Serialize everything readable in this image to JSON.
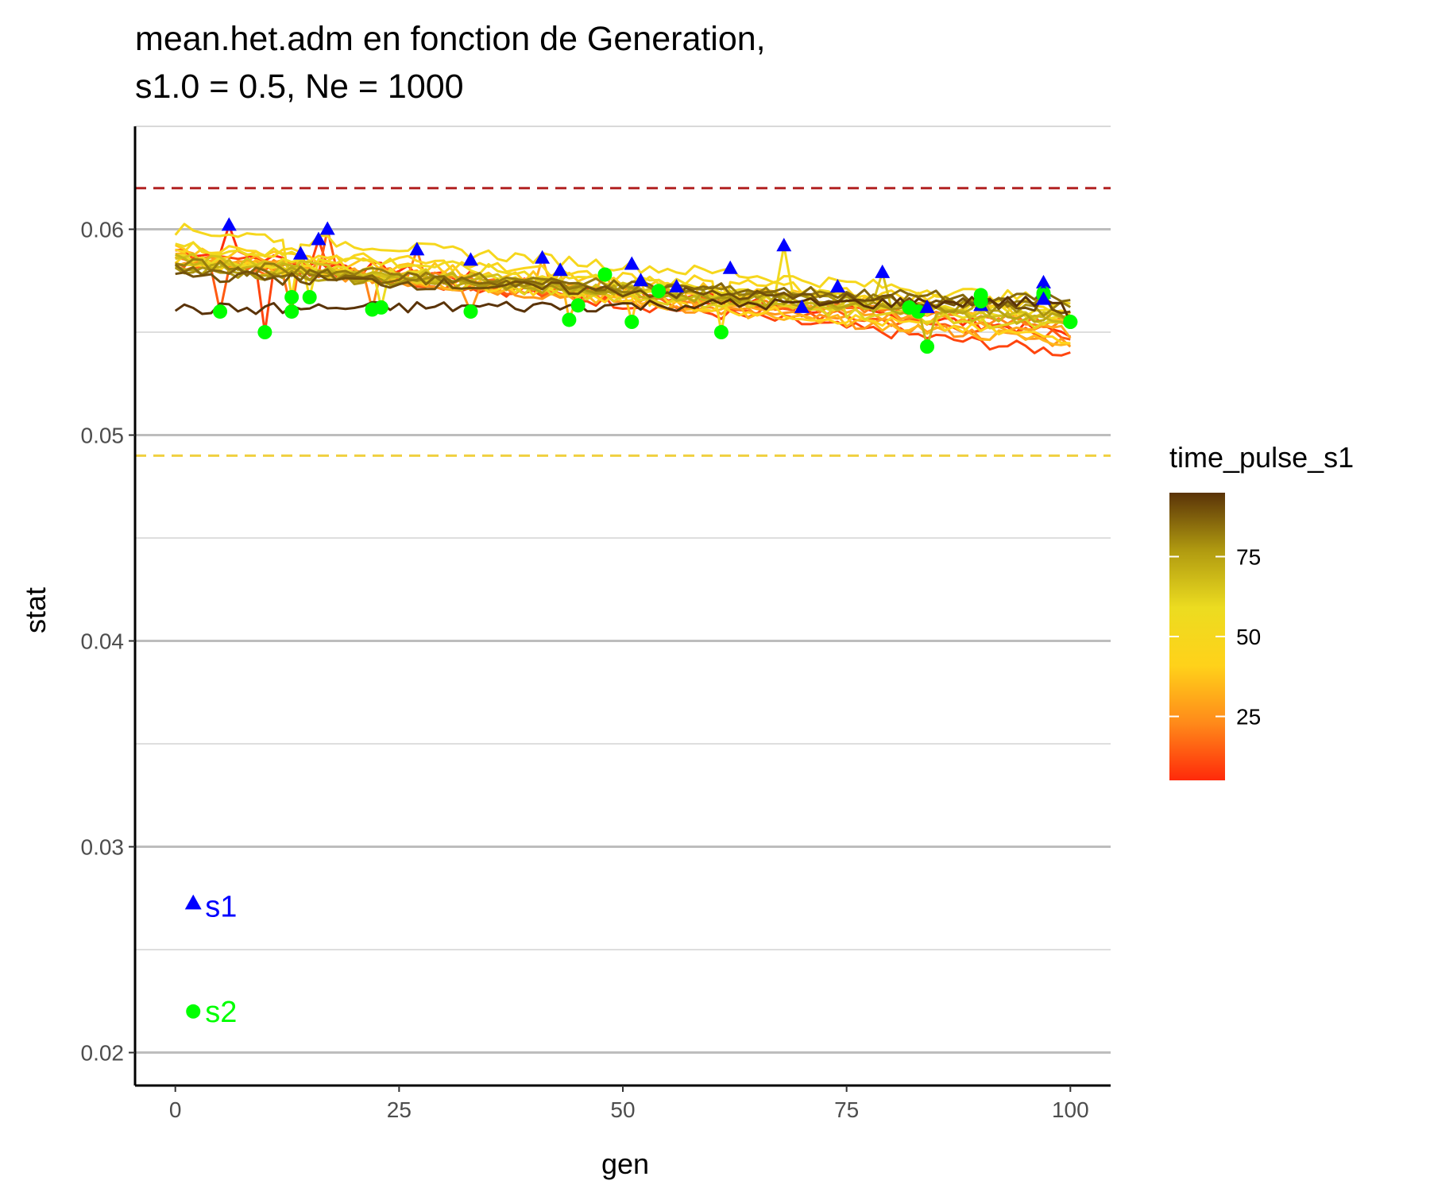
{
  "chart_data": {
    "type": "line",
    "title_lines": [
      "mean.het.adm en fonction de Generation,",
      "s1.0 = 0.5, Ne = 1000"
    ],
    "xlabel": "gen",
    "ylabel": "stat",
    "xlim": [
      -4.5,
      104.5
    ],
    "ylim": [
      0.0184,
      0.065
    ],
    "x_ticks": [
      0,
      25,
      50,
      75,
      100
    ],
    "x_tick_labels": [
      "0",
      "25",
      "50",
      "75",
      "100"
    ],
    "y_ticks": [
      0.02,
      0.03,
      0.04,
      0.05,
      0.06
    ],
    "y_tick_labels": [
      "0.02",
      "0.03",
      "0.04",
      "0.05",
      "0.06"
    ],
    "y_minor_ticks": [
      0.025,
      0.035,
      0.045,
      0.055,
      0.065
    ],
    "grid": "horizontal",
    "reference_lines": [
      {
        "y": 0.062,
        "color": "#b22222",
        "style": "dashed"
      },
      {
        "y": 0.049,
        "color": "#f0d040",
        "style": "dashed"
      }
    ],
    "legend": {
      "title": "time_pulse_s1",
      "position": "right",
      "range": [
        5,
        95
      ],
      "ticks": [
        25,
        50,
        75
      ],
      "tick_labels": [
        "25",
        "50",
        "75"
      ],
      "gradient_colors": [
        "#ff2a0a",
        "#ff8a1a",
        "#ffd21a",
        "#ecdc20",
        "#b09a10",
        "#5a3308"
      ]
    },
    "series": [
      {
        "pulse": 6,
        "start": 0.059,
        "end": 0.055,
        "peak": 0.0602,
        "peak_gen": 6,
        "s2_gen": 45,
        "s2_value": 0.0563
      },
      {
        "pulse": 10,
        "start": 0.0588,
        "end": 0.054,
        "peak": 0.0595,
        "peak_gen": 16,
        "s2_gen": 10,
        "s2_value": 0.055
      },
      {
        "pulse": 14,
        "start": 0.0585,
        "end": 0.0548,
        "peak": 0.06,
        "peak_gen": 17,
        "s2_gen": 5,
        "s2_value": 0.056
      },
      {
        "pulse": 18,
        "start": 0.0583,
        "end": 0.0555,
        "peak": 0.0588,
        "peak_gen": 14,
        "s2_gen": 13,
        "s2_value": 0.056
      },
      {
        "pulse": 22,
        "start": 0.0587,
        "end": 0.0553,
        "peak": 0.059,
        "peak_gen": 27,
        "s2_gen": 22,
        "s2_value": 0.0561
      },
      {
        "pulse": 26,
        "start": 0.0585,
        "end": 0.0545,
        "peak": 0.0585,
        "peak_gen": 33,
        "s2_gen": 33,
        "s2_value": 0.056
      },
      {
        "pulse": 30,
        "start": 0.0588,
        "end": 0.055,
        "peak": 0.0586,
        "peak_gen": 41,
        "s2_gen": 48,
        "s2_value": 0.0578
      },
      {
        "pulse": 34,
        "start": 0.0586,
        "end": 0.0545,
        "peak": 0.058,
        "peak_gen": 43,
        "s2_gen": 44,
        "s2_value": 0.0556
      },
      {
        "pulse": 38,
        "start": 0.059,
        "end": 0.0558,
        "peak": 0.0583,
        "peak_gen": 51,
        "s2_gen": 51,
        "s2_value": 0.0555
      },
      {
        "pulse": 42,
        "start": 0.0585,
        "end": 0.0547,
        "peak": 0.0575,
        "peak_gen": 52,
        "s2_gen": 54,
        "s2_value": 0.057
      },
      {
        "pulse": 46,
        "start": 0.0592,
        "end": 0.0562,
        "peak": 0.0572,
        "peak_gen": 56,
        "s2_gen": 61,
        "s2_value": 0.055
      },
      {
        "pulse": 50,
        "start": 0.06,
        "end": 0.0565,
        "peak": 0.0581,
        "peak_gen": 62,
        "s2_gen": 13,
        "s2_value": 0.0567
      },
      {
        "pulse": 54,
        "start": 0.0592,
        "end": 0.0558,
        "peak": 0.0592,
        "peak_gen": 68,
        "s2_gen": 15,
        "s2_value": 0.0567
      },
      {
        "pulse": 58,
        "start": 0.0587,
        "end": 0.0555,
        "peak": 0.0562,
        "peak_gen": 70,
        "s2_gen": 23,
        "s2_value": 0.0562
      },
      {
        "pulse": 62,
        "start": 0.0583,
        "end": 0.0552,
        "peak": 0.0572,
        "peak_gen": 74,
        "s2_gen": 82,
        "s2_value": 0.0562
      },
      {
        "pulse": 66,
        "start": 0.0586,
        "end": 0.0556,
        "peak": 0.0579,
        "peak_gen": 79,
        "s2_gen": 83,
        "s2_value": 0.056
      },
      {
        "pulse": 70,
        "start": 0.0585,
        "end": 0.0555,
        "peak": 0.0562,
        "peak_gen": 84,
        "s2_gen": 84,
        "s2_value": 0.0543
      },
      {
        "pulse": 74,
        "start": 0.0582,
        "end": 0.0557,
        "peak": 0.0567,
        "peak_gen": 90,
        "s2_gen": 90,
        "s2_value": 0.0568
      },
      {
        "pulse": 78,
        "start": 0.058,
        "end": 0.056,
        "peak": 0.0563,
        "peak_gen": 90,
        "s2_gen": 100,
        "s2_value": 0.0555
      },
      {
        "pulse": 82,
        "start": 0.0583,
        "end": 0.0562,
        "peak": 0.0574,
        "peak_gen": 97,
        "s2_gen": 97,
        "s2_value": 0.0569
      },
      {
        "pulse": 86,
        "start": 0.058,
        "end": 0.0565,
        "peak": 0.057,
        "peak_gen": 97,
        "s2_gen": 90,
        "s2_value": 0.0565
      },
      {
        "pulse": 90,
        "start": 0.0578,
        "end": 0.0562,
        "peak": 0.0569,
        "peak_gen": 97,
        "s2_gen": 97,
        "s2_value": 0.0568
      },
      {
        "pulse": 95,
        "start": 0.0561,
        "end": 0.0565,
        "peak": 0.0566,
        "peak_gen": 97,
        "s2_gen": 100,
        "s2_value": 0.0555
      }
    ],
    "annotations": [
      {
        "label": "s1",
        "marker": "triangle",
        "x": 2,
        "y": 0.0271,
        "color": "#0000ff"
      },
      {
        "label": "s2",
        "marker": "circle",
        "x": 2,
        "y": 0.022,
        "color": "#00ff00"
      }
    ],
    "colors": {
      "s1_marker": "#0000ff",
      "s2_marker": "#00ff00"
    }
  }
}
